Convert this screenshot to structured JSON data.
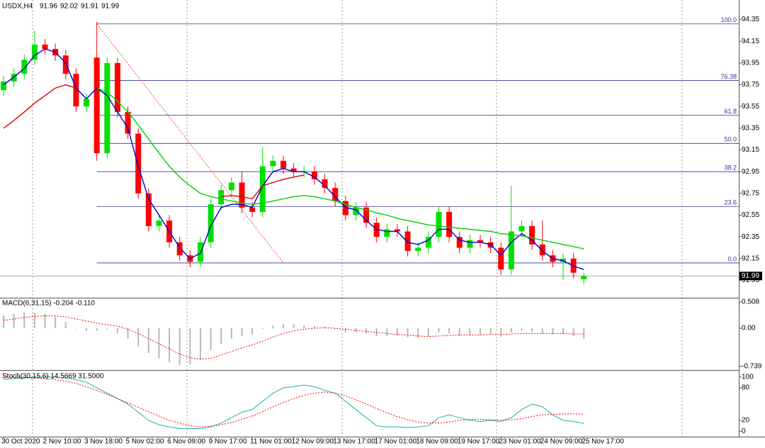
{
  "chart_data": [
    {
      "type": "candlestick",
      "title": "USDX,H4",
      "categories": [
        "30 Oct 2020",
        null,
        null,
        null,
        "2 Nov 10:00",
        null,
        null,
        null,
        "3 Nov 18:00",
        null,
        null,
        null,
        "5 Nov 02:00",
        null,
        null,
        null,
        "6 Nov 09:00",
        null,
        null,
        null,
        "9 Nov 17:00",
        null,
        null,
        null,
        "11 Nov 01:00",
        null,
        null,
        null,
        "12 Nov 09:00",
        null,
        null,
        null,
        "13 Nov 17:00",
        null,
        null,
        null,
        "17 Nov 01:00",
        null,
        null,
        null,
        "18 Nov 09:00",
        null,
        null,
        null,
        "19 Nov 17:00",
        null,
        null,
        null,
        "23 Nov 01:00",
        null,
        null,
        null,
        "24 Nov 09:00",
        null,
        null,
        null,
        "25 Nov 17:00"
      ],
      "open": [
        93.7,
        93.78,
        93.85,
        93.98,
        94.12,
        94.08,
        94.02,
        93.85,
        93.55,
        94.0,
        93.12,
        93.95,
        93.5,
        93.3,
        92.75,
        92.45,
        92.5,
        92.3,
        92.18,
        92.12,
        92.3,
        92.65,
        92.78,
        92.85,
        92.62,
        92.58,
        93.0,
        93.05,
        92.98,
        92.95,
        92.95,
        92.88,
        92.8,
        92.68,
        92.55,
        92.62,
        92.48,
        92.35,
        92.42,
        92.4,
        92.22,
        92.25,
        92.35,
        92.58,
        92.35,
        92.25,
        92.32,
        92.3,
        92.25,
        92.05,
        92.4,
        92.45,
        92.28,
        92.18,
        92.12,
        92.15,
        91.96
      ],
      "high": [
        93.83,
        93.9,
        94.03,
        94.25,
        94.17,
        94.13,
        94.07,
        93.9,
        93.67,
        94.33,
        94.0,
        94.0,
        93.55,
        93.35,
        92.8,
        92.55,
        92.55,
        92.35,
        92.23,
        92.35,
        92.7,
        92.83,
        92.9,
        92.95,
        92.67,
        93.18,
        93.1,
        93.1,
        93.03,
        93.0,
        93.0,
        92.93,
        92.85,
        92.73,
        92.67,
        92.67,
        92.53,
        92.47,
        92.47,
        92.45,
        92.3,
        92.4,
        92.63,
        92.63,
        92.4,
        92.37,
        92.37,
        92.35,
        92.3,
        92.82,
        92.5,
        92.5,
        92.5,
        92.23,
        92.2,
        92.2,
        92.02
      ],
      "low": [
        93.65,
        93.73,
        93.8,
        93.93,
        94.03,
        93.97,
        93.8,
        93.5,
        93.5,
        93.05,
        93.07,
        93.45,
        93.25,
        92.7,
        92.4,
        92.4,
        92.25,
        92.13,
        92.07,
        92.07,
        92.25,
        92.6,
        92.73,
        92.57,
        92.53,
        92.53,
        92.95,
        92.93,
        92.9,
        92.9,
        92.83,
        92.75,
        92.63,
        92.5,
        92.5,
        92.43,
        92.3,
        92.3,
        92.35,
        92.17,
        92.17,
        92.2,
        92.3,
        92.3,
        92.2,
        92.2,
        92.25,
        92.2,
        92.0,
        92.0,
        92.35,
        92.23,
        92.13,
        92.07,
        91.95,
        91.97,
        91.91
      ],
      "close": [
        93.78,
        93.85,
        93.98,
        94.12,
        94.08,
        94.02,
        93.85,
        93.55,
        93.62,
        93.12,
        93.95,
        93.5,
        93.3,
        92.75,
        92.45,
        92.5,
        92.3,
        92.18,
        92.12,
        92.3,
        92.65,
        92.78,
        92.85,
        92.62,
        92.58,
        93.0,
        93.05,
        92.98,
        92.95,
        92.95,
        92.88,
        92.8,
        92.68,
        92.55,
        92.62,
        92.48,
        92.35,
        92.42,
        92.4,
        92.22,
        92.25,
        92.35,
        92.58,
        92.35,
        92.25,
        92.32,
        92.3,
        92.25,
        92.05,
        92.4,
        92.45,
        92.28,
        92.18,
        92.12,
        92.15,
        92.02,
        91.99
      ],
      "up_color": "#00e000",
      "down_color": "#ff0000",
      "series": [
        {
          "color": "#0000c8",
          "values": [
            93.75,
            93.82,
            93.9,
            94.02,
            94.08,
            94.05,
            93.95,
            93.72,
            93.62,
            93.72,
            93.65,
            93.5,
            93.35,
            93.0,
            92.7,
            92.55,
            92.4,
            92.25,
            92.15,
            92.2,
            92.45,
            92.62,
            92.65,
            92.65,
            92.62,
            92.82,
            92.95,
            92.98,
            92.95,
            92.95,
            92.9,
            92.82,
            92.72,
            92.62,
            92.6,
            92.5,
            92.42,
            92.4,
            92.4,
            92.3,
            92.28,
            92.32,
            92.42,
            92.42,
            92.32,
            92.3,
            92.3,
            92.28,
            92.18,
            92.3,
            92.38,
            92.32,
            92.22,
            92.15,
            92.13,
            92.08,
            92.05
          ]
        },
        {
          "color": "#e00000",
          "values": [
            93.35,
            93.42,
            93.5,
            93.58,
            93.65,
            93.72,
            93.75,
            93.72,
            null,
            null,
            null,
            null,
            null,
            null,
            null,
            null,
            null,
            null,
            null,
            null,
            null,
            92.72,
            92.73,
            92.72,
            92.7,
            92.82,
            92.85,
            92.88,
            92.9,
            92.92,
            null,
            null,
            null,
            null,
            null,
            null,
            null,
            null,
            null,
            null,
            null,
            null,
            null,
            null,
            null,
            null,
            null,
            null,
            null,
            null,
            null,
            null,
            null,
            null,
            null,
            null,
            null
          ]
        },
        {
          "color": "#00d000",
          "values": [
            null,
            null,
            null,
            null,
            null,
            null,
            null,
            null,
            null,
            93.72,
            93.68,
            93.6,
            93.5,
            93.38,
            93.25,
            93.12,
            93.0,
            92.9,
            92.82,
            92.75,
            92.72,
            92.7,
            92.68,
            92.66,
            92.65,
            92.66,
            92.68,
            92.7,
            92.72,
            92.73,
            92.72,
            92.7,
            92.68,
            92.65,
            92.62,
            92.6,
            92.57,
            92.55,
            92.52,
            92.5,
            92.48,
            92.46,
            92.45,
            92.44,
            92.43,
            92.42,
            92.41,
            92.4,
            92.38,
            92.37,
            92.36,
            92.34,
            92.32,
            92.3,
            92.28,
            92.26,
            92.24
          ]
        }
      ],
      "fib_levels": [
        {
          "label": "100.0",
          "value": 94.31
        },
        {
          "label": "76.38",
          "value": 93.79
        },
        {
          "label": "61.8",
          "value": 93.47
        },
        {
          "label": "50.0",
          "value": 93.21
        },
        {
          "label": "38.2",
          "value": 92.95
        },
        {
          "label": "23.6",
          "value": 92.63
        },
        {
          "label": "0.0",
          "value": 92.11
        }
      ],
      "fib_color": "#33339a",
      "ylim": [
        91.79,
        94.53
      ],
      "yticks": [
        94.35,
        94.15,
        93.95,
        93.75,
        93.55,
        93.35,
        93.15,
        92.95,
        92.75,
        92.55,
        92.35,
        92.15,
        91.95
      ]
    },
    {
      "type": "macd",
      "title": "MACD(6,31,15) -0.204 -0.110",
      "series": [
        {
          "type": "bar",
          "color": "#b8b8b8",
          "values": [
            0.25,
            0.28,
            0.3,
            0.3,
            0.28,
            0.22,
            0.12,
            0.0,
            -0.05,
            -0.05,
            -0.02,
            -0.1,
            -0.2,
            -0.35,
            -0.48,
            -0.58,
            -0.66,
            -0.72,
            -0.7,
            -0.6,
            -0.42,
            -0.3,
            -0.2,
            -0.15,
            -0.12,
            -0.02,
            0.05,
            0.08,
            0.08,
            0.06,
            0.04,
            0.02,
            -0.02,
            -0.08,
            -0.08,
            -0.1,
            -0.15,
            -0.15,
            -0.14,
            -0.18,
            -0.18,
            -0.16,
            -0.08,
            -0.1,
            -0.14,
            -0.14,
            -0.12,
            -0.12,
            -0.16,
            -0.08,
            -0.05,
            -0.07,
            -0.1,
            -0.12,
            -0.12,
            -0.15,
            -0.204
          ]
        },
        {
          "type": "line",
          "color": "#ff0000",
          "values": [
            0.15,
            0.18,
            0.21,
            0.23,
            0.24,
            0.24,
            0.22,
            0.18,
            0.14,
            0.1,
            0.07,
            0.04,
            -0.02,
            -0.1,
            -0.2,
            -0.3,
            -0.4,
            -0.5,
            -0.57,
            -0.6,
            -0.58,
            -0.52,
            -0.45,
            -0.38,
            -0.32,
            -0.25,
            -0.17,
            -0.1,
            -0.05,
            -0.02,
            0.0,
            0.01,
            0.0,
            -0.02,
            -0.04,
            -0.06,
            -0.08,
            -0.1,
            -0.12,
            -0.13,
            -0.15,
            -0.16,
            -0.15,
            -0.14,
            -0.13,
            -0.13,
            -0.13,
            -0.12,
            -0.12,
            -0.11,
            -0.1,
            -0.1,
            -0.1,
            -0.1,
            -0.1,
            -0.11,
            -0.11
          ]
        }
      ],
      "ylim": [
        -0.808,
        0.577
      ],
      "yticks": [
        0.508,
        {
          "value": 0,
          "label": "0.00"
        },
        -0.739
      ]
    },
    {
      "type": "line",
      "title": "Stoch(30,15,6) 14.5669 31.5000",
      "series": [
        {
          "color": "#20b2aa",
          "values": [
            95,
            97,
            98,
            100,
            100,
            100,
            98,
            95,
            90,
            80,
            70,
            60,
            50,
            35,
            20,
            12,
            8,
            5,
            5,
            5,
            8,
            15,
            25,
            35,
            40,
            55,
            70,
            80,
            82,
            85,
            82,
            75,
            70,
            55,
            40,
            25,
            10,
            8,
            8,
            7,
            8,
            10,
            25,
            30,
            25,
            20,
            18,
            20,
            18,
            25,
            40,
            50,
            45,
            30,
            20,
            18,
            14.5669
          ]
        },
        {
          "color": "#ff0000",
          "dash": true,
          "values": [
            100,
            100,
            99,
            98,
            97,
            95,
            92,
            88,
            82,
            75,
            68,
            60,
            52,
            44,
            36,
            28,
            20,
            15,
            10,
            8,
            9,
            12,
            16,
            22,
            28,
            36,
            45,
            53,
            60,
            66,
            70,
            72,
            70,
            65,
            58,
            50,
            42,
            34,
            27,
            21,
            17,
            15,
            15,
            17,
            20,
            22,
            22,
            21,
            20,
            21,
            23,
            27,
            30,
            31,
            32,
            32,
            31.5
          ]
        }
      ],
      "ylim": [
        -10,
        110
      ],
      "yticks": [
        100,
        80,
        20,
        0
      ]
    }
  ]
}
